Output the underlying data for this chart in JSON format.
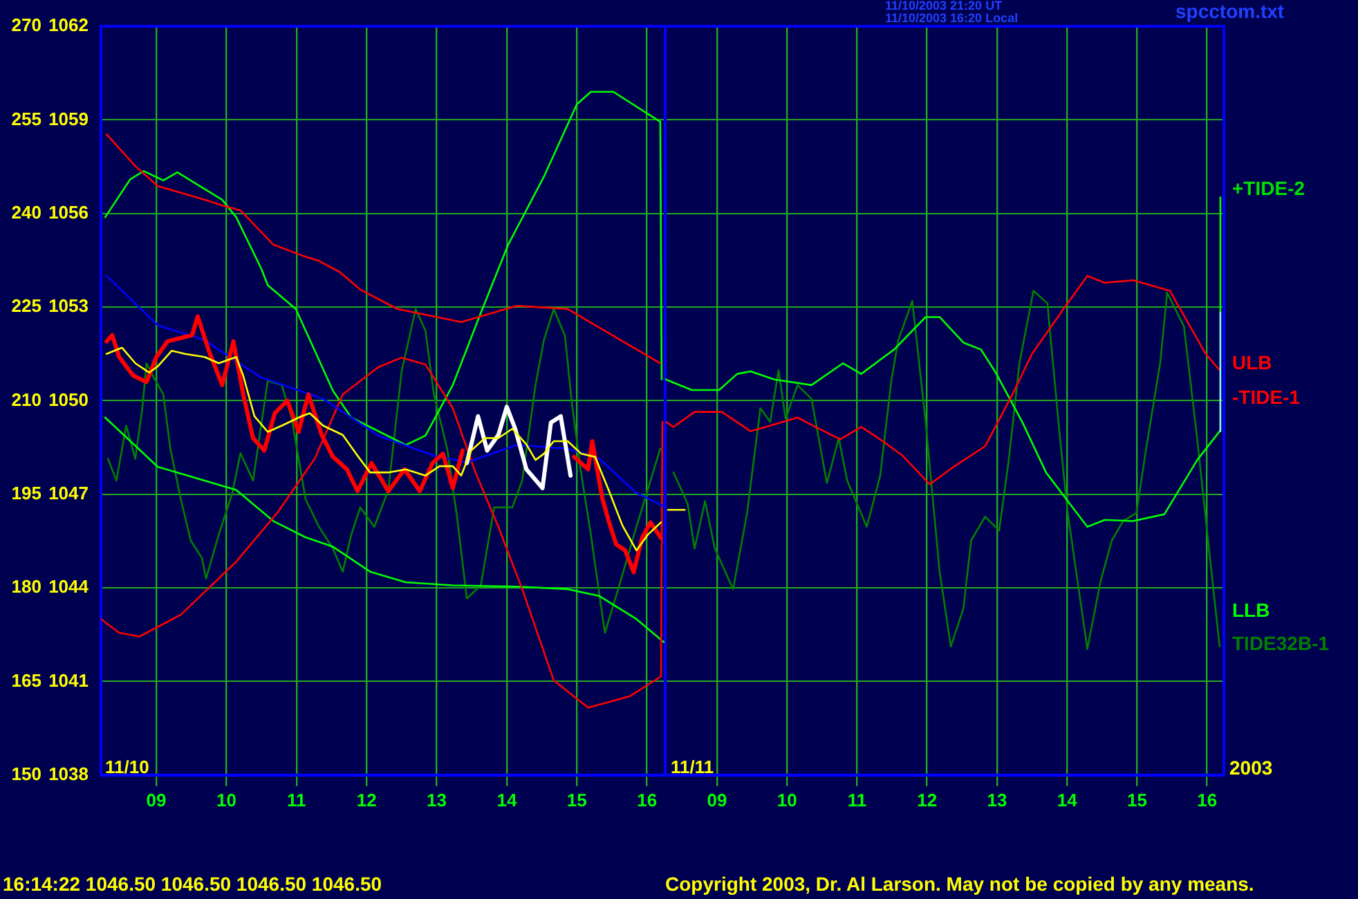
{
  "chart_data": [
    {
      "type": "line",
      "xlim": [
        8.21,
        16.26
      ],
      "xticks": [
        {
          "value": 9,
          "label": "09"
        },
        10,
        11,
        12,
        13,
        14,
        15,
        16
      ],
      "ylim": [
        150,
        270
      ],
      "yticks": [
        150,
        165,
        180,
        195,
        210,
        225,
        240,
        255,
        270
      ],
      "y2lim": [
        1038,
        1062
      ],
      "y2ticks": [
        1038,
        1041,
        1044,
        1047,
        1050,
        1053,
        1056,
        1059,
        1062
      ],
      "grid": true,
      "legend": false,
      "marker": "none",
      "line_style": "solid",
      "series": [
        {
          "color": "#008000",
          "x": [
            8.31,
            8.43,
            8.57,
            8.7,
            8.8,
            8.86,
            8.96,
            9.1,
            9.2,
            9.35,
            9.49,
            9.65,
            9.71,
            9.89,
            10.08,
            10.2,
            10.38,
            10.59,
            10.79,
            10.93,
            11.13,
            11.32,
            11.52,
            11.66,
            11.78,
            11.91,
            12.11,
            12.31,
            12.5,
            12.7,
            12.84,
            12.96,
            13.15,
            13.29,
            13.43,
            13.63,
            13.82,
            14.08,
            14.22,
            14.41,
            14.53,
            14.67,
            14.83,
            14.93,
            15.06,
            15.2,
            15.4,
            15.59,
            15.85,
            16.19
          ],
          "values": [
            200.7,
            197.2,
            206.0,
            200.7,
            208.8,
            216.0,
            213.8,
            211.0,
            202.3,
            194.2,
            187.6,
            184.8,
            181.5,
            188.5,
            195.0,
            201.6,
            197.2,
            213.2,
            212.5,
            207.3,
            194.2,
            189.8,
            186.3,
            182.6,
            188.5,
            192.9,
            189.8,
            195.7,
            214.7,
            224.7,
            221.2,
            211.0,
            202.3,
            191.4,
            178.3,
            180.4,
            192.9,
            192.9,
            197.2,
            212.5,
            219.7,
            224.7,
            220.4,
            209.5,
            198.5,
            188.5,
            172.8,
            179.8,
            189.8,
            202.3
          ]
        },
        {
          "color": "#00ff00",
          "x": [
            8.27,
            8.63,
            8.82,
            9.1,
            9.3,
            9.94,
            10.14,
            10.5,
            10.59,
            10.99,
            11.52,
            11.78,
            12.56,
            12.84,
            13.23,
            13.63,
            14.02,
            14.53,
            15.0,
            15.2,
            15.52,
            16.19,
            16.21
          ],
          "values": [
            239.4,
            245.5,
            246.8,
            245.3,
            246.6,
            242.2,
            239.4,
            231.1,
            228.5,
            224.7,
            211.6,
            207.3,
            202.9,
            204.4,
            212.5,
            224.1,
            235.0,
            245.9,
            257.5,
            259.5,
            259.5,
            254.7,
            213.4
          ]
        },
        {
          "color": "#00ff00",
          "x": [
            8.27,
            9.02,
            10.14,
            10.67,
            11.13,
            11.52,
            12.05,
            12.56,
            13.23,
            14.14,
            14.87,
            15.32,
            15.85,
            16.24
          ],
          "values": [
            207.3,
            199.4,
            195.7,
            190.7,
            188.1,
            186.6,
            182.6,
            180.9,
            180.4,
            180.2,
            179.8,
            178.7,
            175.0,
            171.3
          ]
        },
        {
          "color": "#ff0000",
          "x": [
            8.29,
            8.7,
            9.02,
            9.69,
            9.94,
            10.2,
            10.67,
            11.07,
            11.32,
            11.62,
            11.91,
            12.44,
            13.35,
            14.14,
            14.87,
            15.52,
            16.19
          ],
          "values": [
            252.7,
            247.6,
            244.4,
            242.2,
            241.3,
            240.5,
            235.0,
            233.3,
            232.4,
            230.6,
            227.8,
            224.7,
            222.6,
            225.2,
            224.7,
            220.4,
            216.0
          ]
        },
        {
          "color": "#ff0000",
          "x": [
            8.21,
            8.47,
            8.76,
            9.35,
            10.14,
            10.73,
            11.26,
            11.66,
            12.17,
            12.5,
            12.84,
            13.23,
            13.55,
            13.88,
            14.22,
            14.67,
            15.16,
            15.75,
            16.2,
            16.22
          ],
          "values": [
            175.0,
            172.8,
            172.2,
            175.7,
            184.2,
            192.1,
            200.7,
            211.0,
            215.4,
            216.9,
            215.8,
            208.8,
            198.6,
            189.8,
            179.8,
            165.2,
            160.8,
            162.6,
            165.8,
            206.6
          ]
        },
        {
          "color": "#0000ff",
          "x": [
            8.29,
            9.02,
            9.69,
            10.48,
            11.38,
            12.17,
            12.96,
            13.43,
            14.14,
            14.87,
            15.32,
            15.85,
            16.24
          ],
          "values": [
            230.0,
            222.1,
            219.7,
            213.8,
            210.3,
            204.4,
            201.2,
            200.1,
            202.9,
            202.3,
            200.7,
            195.2,
            193.1
          ]
        },
        {
          "color": "#ff0000",
          "axis": "y2",
          "x": [
            8.29,
            8.37,
            8.47,
            8.67,
            8.86,
            9.0,
            9.16,
            9.51,
            9.59,
            9.75,
            9.94,
            10.1,
            10.24,
            10.38,
            10.54,
            10.69,
            10.87,
            11.03,
            11.17,
            11.36,
            11.52,
            11.72,
            11.87,
            12.07,
            12.31,
            12.54,
            12.76,
            12.94,
            13.09,
            13.23,
            13.37,
            14.2,
            14.96,
            15.16,
            15.22,
            15.36,
            15.46,
            15.56,
            15.69,
            15.81,
            15.93,
            16.05,
            16.2
          ],
          "values": [
            1051.9,
            1052.1,
            1051.4,
            1050.8,
            1050.6,
            1051.4,
            1051.9,
            1052.1,
            1052.7,
            1051.6,
            1050.5,
            1051.9,
            1050.2,
            1048.8,
            1048.4,
            1049.6,
            1050.0,
            1049.0,
            1050.2,
            1048.9,
            1048.2,
            1047.8,
            1047.1,
            1048.0,
            1047.1,
            1047.8,
            1047.1,
            1048.0,
            1048.3,
            1047.2,
            1048.4,
            null,
            1048.2,
            1047.8,
            1048.7,
            1046.9,
            1046.1,
            1045.4,
            1045.2,
            1044.5,
            1045.6,
            1046.1,
            1045.6
          ]
        },
        {
          "color": "#ffffff",
          "axis": "y2",
          "x": [
            13.43,
            13.59,
            13.72,
            13.88,
            14.0,
            14.12,
            14.28,
            14.51,
            14.63,
            14.77,
            14.91
          ],
          "values": [
            1048.0,
            1049.5,
            1048.4,
            1048.9,
            1049.8,
            1049.1,
            1047.8,
            1047.2,
            1049.3,
            1049.5,
            1047.6
          ]
        },
        {
          "color": "#ffff00",
          "axis": "y2",
          "x": [
            8.29,
            8.51,
            8.7,
            8.9,
            9.02,
            9.22,
            9.41,
            9.69,
            9.89,
            10.14,
            10.24,
            10.4,
            10.59,
            10.79,
            11.07,
            11.19,
            11.38,
            11.66,
            11.85,
            12.05,
            12.31,
            12.56,
            12.84,
            13.04,
            13.23,
            13.35,
            13.49,
            13.69,
            13.88,
            14.08,
            14.28,
            14.41,
            14.53,
            14.67,
            14.87,
            15.06,
            15.26,
            15.46,
            15.65,
            15.85,
            16.01,
            16.2
          ],
          "values": [
            1051.5,
            1051.7,
            1051.2,
            1050.9,
            1051.1,
            1051.6,
            1051.5,
            1051.4,
            1051.2,
            1051.4,
            1050.8,
            1049.5,
            1049.0,
            1049.2,
            1049.5,
            1049.6,
            1049.2,
            1048.9,
            1048.3,
            1047.7,
            1047.7,
            1047.8,
            1047.6,
            1047.9,
            1047.9,
            1047.6,
            1048.4,
            1048.8,
            1048.8,
            1049.1,
            1048.6,
            1048.1,
            1048.3,
            1048.7,
            1048.7,
            1048.3,
            1048.2,
            1047.1,
            1046.0,
            1045.2,
            1045.7,
            1046.1
          ]
        }
      ],
      "annotations": [
        "11/10",
        "16:14:22  1046.50 1046.50 1046.50 1046.50"
      ]
    },
    {
      "type": "line",
      "xlim": [
        8.26,
        16.24
      ],
      "xticks": [
        {
          "value": 9,
          "label": "09"
        },
        10,
        11,
        12,
        13,
        14,
        15,
        16
      ],
      "ylim": [
        150,
        270
      ],
      "yticks": [
        150,
        165,
        180,
        195,
        210,
        225,
        240,
        255,
        270
      ],
      "y2lim": [
        1038,
        1062
      ],
      "y2ticks": [
        1038,
        1041,
        1044,
        1047,
        1050,
        1053,
        1056,
        1059,
        1062
      ],
      "tick_labels": "x",
      "grid": true,
      "legend": false,
      "marker": "none",
      "line_style": "solid",
      "series": [
        {
          "color": "#008000",
          "x": [
            8.38,
            8.58,
            8.68,
            8.83,
            8.97,
            9.23,
            9.43,
            9.62,
            9.76,
            9.88,
            9.98,
            10.15,
            10.35,
            10.57,
            10.74,
            10.86,
            11.14,
            11.33,
            11.49,
            11.59,
            11.79,
            11.98,
            12.18,
            12.34,
            12.52,
            12.63,
            12.83,
            13.03,
            13.17,
            13.32,
            13.52,
            13.72,
            13.89,
            14.01,
            14.15,
            14.29,
            14.48,
            14.64,
            14.8,
            14.99,
            15.13,
            15.33,
            15.43,
            15.67,
            15.86,
            16.02,
            16.12,
            16.18
          ],
          "values": [
            198.5,
            193.5,
            186.3,
            193.9,
            186.3,
            179.8,
            192.0,
            208.8,
            206.6,
            214.9,
            207.1,
            212.5,
            210.3,
            196.8,
            204.0,
            197.2,
            189.8,
            197.9,
            213.2,
            219.7,
            226.0,
            206.6,
            182.6,
            170.6,
            176.7,
            187.6,
            191.4,
            189.2,
            200.7,
            216.0,
            227.6,
            225.6,
            205.1,
            192.0,
            181.1,
            170.2,
            181.1,
            187.6,
            190.7,
            192.0,
            202.3,
            216.0,
            227.3,
            221.9,
            203.8,
            187.0,
            176.7,
            170.6
          ]
        },
        {
          "color": "#00ff00",
          "x": [
            8.27,
            8.64,
            9.03,
            9.29,
            9.48,
            9.82,
            10.35,
            10.8,
            11.06,
            11.53,
            11.98,
            12.18,
            12.52,
            12.77,
            12.97,
            13.36,
            13.7,
            14.29,
            14.54,
            14.94,
            15.39,
            15.86,
            16.18
          ],
          "values": [
            213.4,
            211.7,
            211.7,
            214.3,
            214.7,
            213.4,
            212.5,
            216.0,
            214.3,
            218.2,
            223.4,
            223.4,
            219.3,
            218.2,
            214.7,
            206.6,
            198.5,
            189.8,
            190.9,
            190.7,
            191.8,
            200.5,
            205.1
          ]
        },
        {
          "color": "#ff0000",
          "x": [
            8.27,
            8.38,
            8.68,
            9.07,
            9.48,
            9.76,
            10.15,
            10.41,
            10.76,
            11.06,
            11.33,
            11.65,
            12.04,
            12.38,
            12.83,
            13.22,
            13.5,
            13.95,
            14.29,
            14.54,
            14.94,
            15.47,
            15.98,
            16.18
          ],
          "values": [
            206.6,
            205.8,
            208.2,
            208.2,
            205.1,
            206.0,
            207.3,
            205.8,
            203.8,
            205.8,
            203.8,
            201.2,
            196.6,
            199.4,
            202.7,
            211.0,
            217.5,
            224.7,
            230.0,
            228.9,
            229.3,
            227.6,
            217.5,
            214.9
          ]
        },
        {
          "color": "#00ff00",
          "x": [
            16.19,
            16.19
          ],
          "values": [
            242.6,
            224.1
          ]
        },
        {
          "color": "#80ffff",
          "x": [
            16.19,
            16.19
          ],
          "values": [
            224.1,
            205.1
          ]
        },
        {
          "color": "#ffff00",
          "axis": "y2",
          "x": [
            8.3,
            8.54
          ],
          "values": [
            1046.5,
            1046.5
          ]
        }
      ],
      "annotations": [
        "+TIDE-2",
        "ULB",
        "-TIDE-1",
        "LLB",
        "TIDE32B-1",
        "11/11",
        "2003",
        "11/10/2003 21:20 UT",
        "11/10/2003 16:20 Local",
        "spcctom.txt",
        "Copyright 2003, Dr. Al Larson. May not be copied by any means."
      ]
    }
  ]
}
